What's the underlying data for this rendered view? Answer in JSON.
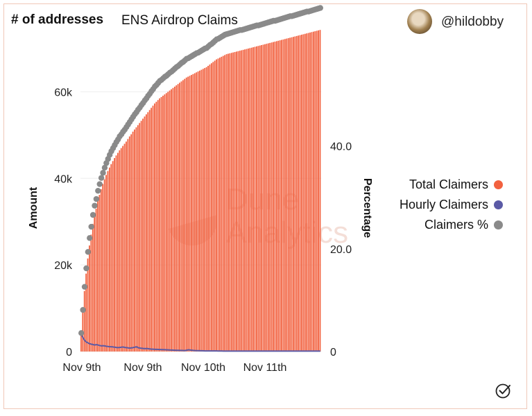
{
  "header": {
    "title": "# of addresses",
    "subtitle": "ENS Airdrop Claims",
    "username": "@hildobby"
  },
  "watermark": {
    "line1": "Dune",
    "line2": "Analytics"
  },
  "colors": {
    "total": "#f2613f",
    "hourly": "#5b5aa6",
    "percent": "#8a8a8a",
    "accent_border": "#f0c8b8"
  },
  "icons": {
    "avatar": "avatar-icon",
    "verified": "check-circle-icon"
  },
  "chart_data": {
    "type": "bar",
    "x_ticks": [
      "Nov 9th",
      "Nov 9th",
      "Nov 10th",
      "Nov 11th"
    ],
    "ylabel": "Amount",
    "y2label": "Percentage",
    "ylim": [
      0,
      70000
    ],
    "y_ticks": [
      "0",
      "20k",
      "40k",
      "60k"
    ],
    "y_tick_values": [
      0,
      20000,
      40000,
      60000
    ],
    "y2lim": [
      0,
      59
    ],
    "y2_ticks": [
      "0",
      "20.0",
      "40.0"
    ],
    "y2_tick_values": [
      0,
      20,
      40
    ],
    "grid": true,
    "legend_position": "right",
    "series": [
      {
        "name": "Total Claimers",
        "type": "bar",
        "color": "#f2613f",
        "values": [
          4000,
          9000,
          14000,
          18000,
          21500,
          24500,
          27000,
          29500,
          31500,
          33000,
          34800,
          36200,
          37500,
          38700,
          39800,
          40800,
          41700,
          42500,
          43300,
          44000,
          44700,
          45300,
          45900,
          46500,
          47000,
          47500,
          48000,
          48500,
          49100,
          49700,
          50200,
          50800,
          51300,
          51800,
          52300,
          52800,
          53300,
          53800,
          54300,
          54800,
          55300,
          55800,
          56300,
          56800,
          57300,
          57700,
          58100,
          58500,
          58800,
          59100,
          59400,
          59700,
          60000,
          60300,
          60600,
          60900,
          61200,
          61500,
          61800,
          62100,
          62400,
          62700,
          63000,
          63300,
          63500,
          63700,
          63900,
          64100,
          64300,
          64500,
          64700,
          64900,
          65100,
          65300,
          65500,
          65700,
          66000,
          66300,
          66600,
          66900,
          67200,
          67500,
          67700,
          67900,
          68100,
          68300,
          68500,
          68700,
          68800,
          68900,
          69000,
          69100,
          69200,
          69300,
          69400,
          69500,
          69600,
          69700,
          69800,
          69900,
          70000,
          70100,
          70200,
          70300,
          70400,
          70500,
          70600,
          70700,
          70800,
          70900,
          71000,
          71100,
          71200,
          71300,
          71400,
          71500,
          71600,
          71700,
          71800,
          71900,
          72000,
          72100,
          72200,
          72300,
          72400,
          72500,
          72600,
          72700,
          72800,
          72900,
          73000,
          73100,
          73200,
          73300,
          73400,
          73500,
          73600,
          73700,
          73800,
          73900,
          74000,
          74100,
          74200,
          74300
        ]
      },
      {
        "name": "Hourly Claimers",
        "type": "line",
        "color": "#5b5aa6",
        "values": [
          4000,
          3200,
          2600,
          2200,
          2000,
          1800,
          1700,
          1600,
          1500,
          1600,
          1500,
          1400,
          1300,
          1350,
          1300,
          1200,
          1150,
          1100,
          1100,
          1050,
          1000,
          950,
          900,
          950,
          1000,
          1050,
          950,
          900,
          850,
          800,
          850,
          900,
          1000,
          1100,
          900,
          800,
          750,
          700,
          650,
          700,
          650,
          600,
          550,
          550,
          500,
          500,
          480,
          460,
          450,
          430,
          420,
          400,
          380,
          360,
          340,
          320,
          300,
          280,
          270,
          260,
          250,
          240,
          230,
          300,
          400,
          350,
          300,
          250,
          220,
          200,
          190,
          180,
          170,
          160,
          150,
          150,
          150,
          150,
          150,
          150,
          150,
          140,
          130,
          120,
          110,
          100,
          100,
          100,
          100,
          100,
          100,
          100,
          100,
          100,
          100,
          100,
          100,
          100,
          100,
          100,
          100,
          100,
          100,
          100,
          100,
          100,
          100,
          100,
          100,
          100,
          100,
          100,
          100,
          100,
          100,
          100,
          100,
          100,
          100,
          100,
          100,
          100,
          100,
          100,
          100,
          100,
          100,
          100,
          100,
          100,
          100,
          100,
          100,
          100,
          100,
          100,
          100,
          100,
          100,
          100,
          100,
          100,
          100,
          100
        ]
      },
      {
        "name": "Claimers %",
        "type": "scatter",
        "color": "#8a8a8a",
        "values": [
          3.6,
          8.1,
          12.6,
          16.2,
          19.4,
          22.1,
          24.3,
          26.6,
          28.4,
          29.7,
          31.3,
          32.6,
          33.8,
          34.8,
          35.8,
          36.7,
          37.5,
          38.3,
          39.0,
          39.6,
          40.2,
          40.8,
          41.3,
          41.9,
          42.3,
          42.8,
          43.2,
          43.7,
          44.2,
          44.7,
          45.2,
          45.7,
          46.2,
          46.6,
          47.1,
          47.5,
          48.0,
          48.4,
          48.9,
          49.3,
          49.8,
          50.2,
          50.7,
          51.1,
          51.6,
          51.9,
          52.3,
          52.7,
          52.9,
          53.2,
          53.5,
          53.7,
          54.0,
          54.3,
          54.5,
          54.8,
          55.1,
          55.4,
          55.6,
          55.9,
          56.2,
          56.4,
          56.7,
          57.0,
          57.1,
          57.3,
          57.5,
          57.7,
          57.9,
          58.1,
          58.2,
          58.4,
          58.6,
          58.8,
          59.0,
          59.1,
          59.4,
          59.7,
          59.9,
          60.2,
          60.5,
          60.8,
          60.9,
          61.1,
          61.3,
          61.5,
          61.7,
          61.8,
          61.9,
          62.0,
          62.1,
          62.2,
          62.3,
          62.4,
          62.5,
          62.6,
          62.6,
          62.7,
          62.8,
          62.9,
          63.0,
          63.1,
          63.2,
          63.3,
          63.4,
          63.5,
          63.5,
          63.6,
          63.7,
          63.8,
          63.9,
          64.0,
          64.1,
          64.2,
          64.3,
          64.4,
          64.4,
          64.5,
          64.6,
          64.7,
          64.8,
          64.9,
          65.0,
          65.1,
          65.2,
          65.3,
          65.3,
          65.4,
          65.5,
          65.6,
          65.7,
          65.8,
          65.9,
          66.0,
          66.1,
          66.2,
          66.2,
          66.3,
          66.4,
          66.5,
          66.6,
          66.7,
          66.8,
          66.9
        ]
      }
    ]
  }
}
